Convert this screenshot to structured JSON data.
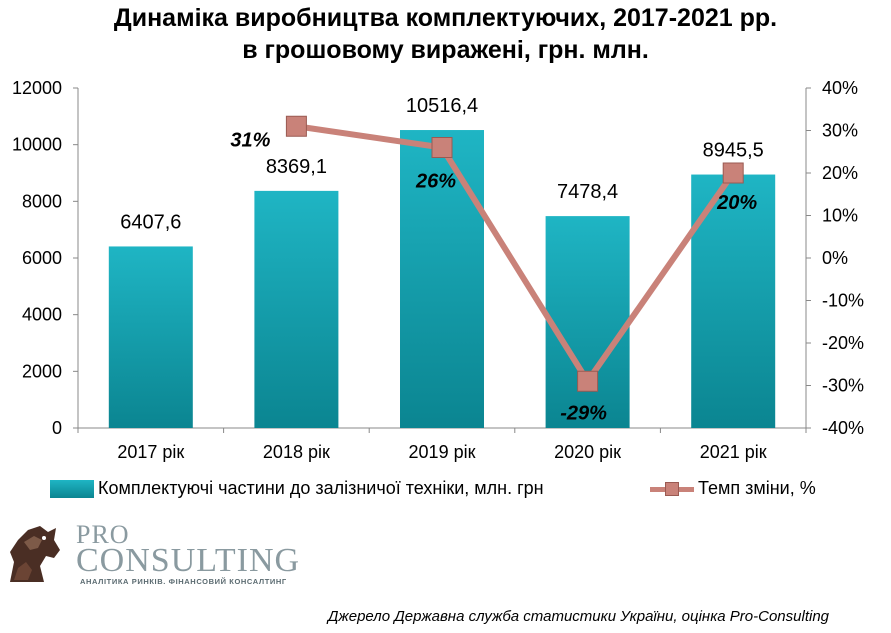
{
  "title_line1": "Динаміка виробництва комплектуючих, 2017-2021 рр.",
  "title_line2": "в грошовому виражені, грн. млн.",
  "chart_data": {
    "type": "bar",
    "categories": [
      "2017 рік",
      "2018 рік",
      "2019 рік",
      "2020 рік",
      "2021 рік"
    ],
    "series": [
      {
        "name": "Комплектуючі частини до залізничої техніки, млн. грн",
        "type": "bar",
        "axis": "left",
        "values": [
          6407.6,
          8369.1,
          10516.4,
          7478.4,
          8945.5
        ],
        "labels": [
          "6407,6",
          "8369,1",
          "10516,4",
          "7478,4",
          "8945,5"
        ],
        "color": "#12a2b0"
      },
      {
        "name": "Темп зміни, %",
        "type": "line",
        "axis": "right",
        "values": [
          null,
          31,
          26,
          -29,
          20
        ],
        "labels": [
          "",
          "31%",
          "26%",
          "-29%",
          "20%"
        ],
        "color": "#c98279"
      }
    ],
    "ylim_left": [
      0,
      12000
    ],
    "yticks_left": [
      "0",
      "2000",
      "4000",
      "6000",
      "8000",
      "10000",
      "12000"
    ],
    "ylim_right": [
      -40,
      40
    ],
    "yticks_right": [
      "-40%",
      "-30%",
      "-20%",
      "-10%",
      "0%",
      "10%",
      "20%",
      "30%",
      "40%"
    ],
    "grid": false,
    "legend_position": "bottom"
  },
  "legend": {
    "bar_label": "Комплектуючі частини до залізничої техніки, млн. грн",
    "line_label": "Темп зміни, %"
  },
  "logo": {
    "pro": "PRO",
    "consulting": "CONSULTING",
    "subtitle": "АНАЛІТИКА РИНКІВ. ФІНАНСОВИЙ КОНСАЛТИНГ"
  },
  "source": "Джерело Державна служба статистики України, оцінка Pro-Consulting"
}
